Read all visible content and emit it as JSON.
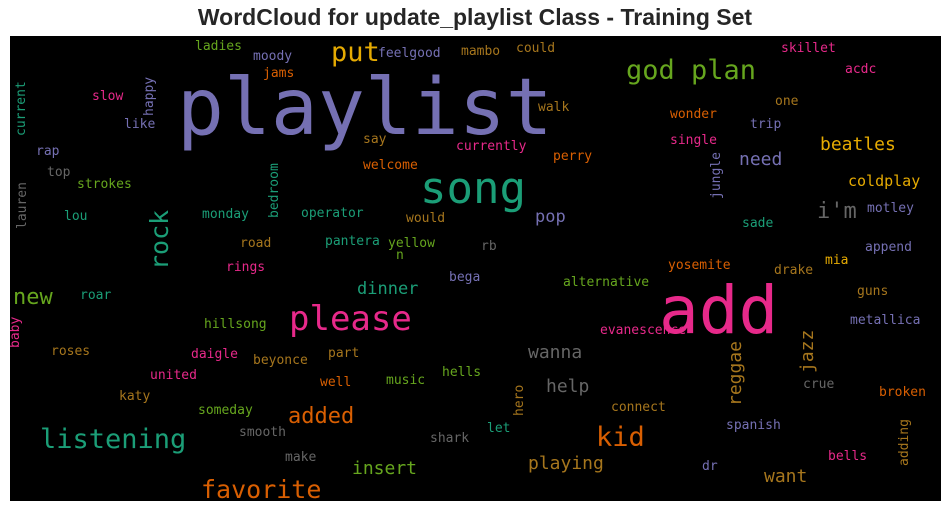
{
  "title": "WordCloud for update_playlist Class - Training Set",
  "chart_data": {
    "type": "wordcloud",
    "background": "#000000",
    "palette": {
      "purple": "#7570b3",
      "green": "#1b9e77",
      "orange": "#d95f02",
      "pink": "#e7298a",
      "lime": "#66a61e",
      "gold": "#e6ab02",
      "brown": "#a6761d",
      "gray": "#666666"
    },
    "words": [
      {
        "text": "playlist",
        "color": "#7570b3"
      },
      {
        "text": "add",
        "color": "#e7298a"
      },
      {
        "text": "song",
        "color": "#1b9e77"
      },
      {
        "text": "please",
        "color": "#e7298a"
      },
      {
        "text": "god plan",
        "color": "#66a61e"
      },
      {
        "text": "put",
        "color": "#e6ab02"
      },
      {
        "text": "kid",
        "color": "#d95f02"
      },
      {
        "text": "listening",
        "color": "#1b9e77"
      },
      {
        "text": "favorite",
        "color": "#d95f02"
      },
      {
        "text": "rock",
        "color": "#1b9e77"
      },
      {
        "text": "added",
        "color": "#d95f02"
      },
      {
        "text": "new",
        "color": "#66a61e"
      },
      {
        "text": "i'm",
        "color": "#666666"
      },
      {
        "text": "need",
        "color": "#7570b3"
      },
      {
        "text": "beatles",
        "color": "#e6ab02"
      },
      {
        "text": "wanna",
        "color": "#666666"
      },
      {
        "text": "help",
        "color": "#666666"
      },
      {
        "text": "playing",
        "color": "#a6761d"
      },
      {
        "text": "insert",
        "color": "#66a61e"
      },
      {
        "text": "want",
        "color": "#a6761d"
      },
      {
        "text": "reggae",
        "color": "#a6761d"
      },
      {
        "text": "jazz",
        "color": "#a6761d"
      },
      {
        "text": "dinner",
        "color": "#1b9e77"
      },
      {
        "text": "pop",
        "color": "#7570b3"
      },
      {
        "text": "coldplay",
        "color": "#e6ab02"
      },
      {
        "text": "evanescence",
        "color": "#e7298a"
      },
      {
        "text": "alternative",
        "color": "#66a61e"
      },
      {
        "text": "hillsong",
        "color": "#66a61e"
      },
      {
        "text": "beyonce",
        "color": "#a6761d"
      },
      {
        "text": "metallica",
        "color": "#7570b3"
      },
      {
        "text": "broken",
        "color": "#d95f02"
      },
      {
        "text": "spanish",
        "color": "#7570b3"
      },
      {
        "text": "connect",
        "color": "#a6761d"
      },
      {
        "text": "someday",
        "color": "#66a61e"
      },
      {
        "text": "smooth",
        "color": "#666666"
      },
      {
        "text": "make",
        "color": "#666666"
      },
      {
        "text": "shark",
        "color": "#666666"
      },
      {
        "text": "let",
        "color": "#1b9e77"
      },
      {
        "text": "hero",
        "color": "#a6761d"
      },
      {
        "text": "dr",
        "color": "#7570b3"
      },
      {
        "text": "bells",
        "color": "#e7298a"
      },
      {
        "text": "adding",
        "color": "#a6761d"
      },
      {
        "text": "crue",
        "color": "#666666"
      },
      {
        "text": "united",
        "color": "#e7298a"
      },
      {
        "text": "well",
        "color": "#d95f02"
      },
      {
        "text": "music",
        "color": "#66a61e"
      },
      {
        "text": "hells",
        "color": "#66a61e"
      },
      {
        "text": "katy",
        "color": "#a6761d"
      },
      {
        "text": "daigle",
        "color": "#e7298a"
      },
      {
        "text": "part",
        "color": "#a6761d"
      },
      {
        "text": "roses",
        "color": "#a6761d"
      },
      {
        "text": "baby",
        "color": "#e7298a"
      },
      {
        "text": "roar",
        "color": "#1b9e77"
      },
      {
        "text": "bega",
        "color": "#7570b3"
      },
      {
        "text": "yosemite",
        "color": "#d95f02"
      },
      {
        "text": "drake",
        "color": "#a6761d"
      },
      {
        "text": "mia",
        "color": "#e6ab02"
      },
      {
        "text": "guns",
        "color": "#a6761d"
      },
      {
        "text": "append",
        "color": "#7570b3"
      },
      {
        "text": "sade",
        "color": "#1b9e77"
      },
      {
        "text": "motley",
        "color": "#7570b3"
      },
      {
        "text": "rings",
        "color": "#e7298a"
      },
      {
        "text": "road",
        "color": "#a6761d"
      },
      {
        "text": "pantera",
        "color": "#1b9e77"
      },
      {
        "text": "yellow",
        "color": "#66a61e"
      },
      {
        "text": "n",
        "color": "#66a61e"
      },
      {
        "text": "rb",
        "color": "#666666"
      },
      {
        "text": "would",
        "color": "#a6761d"
      },
      {
        "text": "operator",
        "color": "#1b9e77"
      },
      {
        "text": "monday",
        "color": "#1b9e77"
      },
      {
        "text": "lou",
        "color": "#1b9e77"
      },
      {
        "text": "strokes",
        "color": "#66a61e"
      },
      {
        "text": "top",
        "color": "#666666"
      },
      {
        "text": "rap",
        "color": "#7570b3"
      },
      {
        "text": "lauren",
        "color": "#666666"
      },
      {
        "text": "bedroom",
        "color": "#1b9e77"
      },
      {
        "text": "jungle",
        "color": "#7570b3"
      },
      {
        "text": "welcome",
        "color": "#d95f02"
      },
      {
        "text": "currently",
        "color": "#e7298a"
      },
      {
        "text": "perry",
        "color": "#d95f02"
      },
      {
        "text": "single",
        "color": "#e7298a"
      },
      {
        "text": "trip",
        "color": "#7570b3"
      },
      {
        "text": "say",
        "color": "#a6761d"
      },
      {
        "text": "like",
        "color": "#7570b3"
      },
      {
        "text": "slow",
        "color": "#e7298a"
      },
      {
        "text": "happy",
        "color": "#7570b3"
      },
      {
        "text": "current",
        "color": "#1b9e77"
      },
      {
        "text": "moody",
        "color": "#7570b3"
      },
      {
        "text": "jams",
        "color": "#d95f02"
      },
      {
        "text": "feelgood",
        "color": "#7570b3"
      },
      {
        "text": "ladies",
        "color": "#66a61e"
      },
      {
        "text": "mambo",
        "color": "#a6761d"
      },
      {
        "text": "could",
        "color": "#a6761d"
      },
      {
        "text": "walk",
        "color": "#a6761d"
      },
      {
        "text": "wonder",
        "color": "#d95f02"
      },
      {
        "text": "one",
        "color": "#a6761d"
      },
      {
        "text": "skillet",
        "color": "#e7298a"
      },
      {
        "text": "acdc",
        "color": "#e7298a"
      }
    ]
  }
}
